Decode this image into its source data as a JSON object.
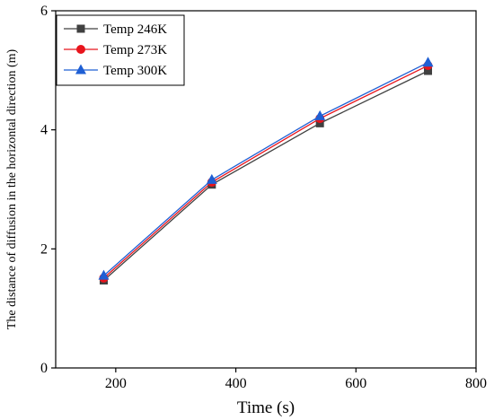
{
  "chart_data": {
    "type": "line",
    "xlabel": "Time (s)",
    "ylabel": "The distance of diffusion in the horizontal direction (m)",
    "xlim": [
      100,
      800
    ],
    "ylim": [
      0,
      6
    ],
    "xticks": [
      200,
      400,
      600,
      800
    ],
    "yticks": [
      0,
      2,
      4,
      6
    ],
    "grid": false,
    "legend_position": "top-left",
    "x": [
      180,
      360,
      540,
      720
    ],
    "series": [
      {
        "name": "Temp 246K",
        "values": [
          1.47,
          3.08,
          4.11,
          4.99
        ],
        "color": "#404040",
        "marker": "square"
      },
      {
        "name": "Temp 273K",
        "values": [
          1.51,
          3.12,
          4.19,
          5.08
        ],
        "color": "#e8141c",
        "marker": "circle"
      },
      {
        "name": "Temp 300K",
        "values": [
          1.55,
          3.16,
          4.23,
          5.13
        ],
        "color": "#1f5fd4",
        "marker": "triangle"
      }
    ]
  }
}
